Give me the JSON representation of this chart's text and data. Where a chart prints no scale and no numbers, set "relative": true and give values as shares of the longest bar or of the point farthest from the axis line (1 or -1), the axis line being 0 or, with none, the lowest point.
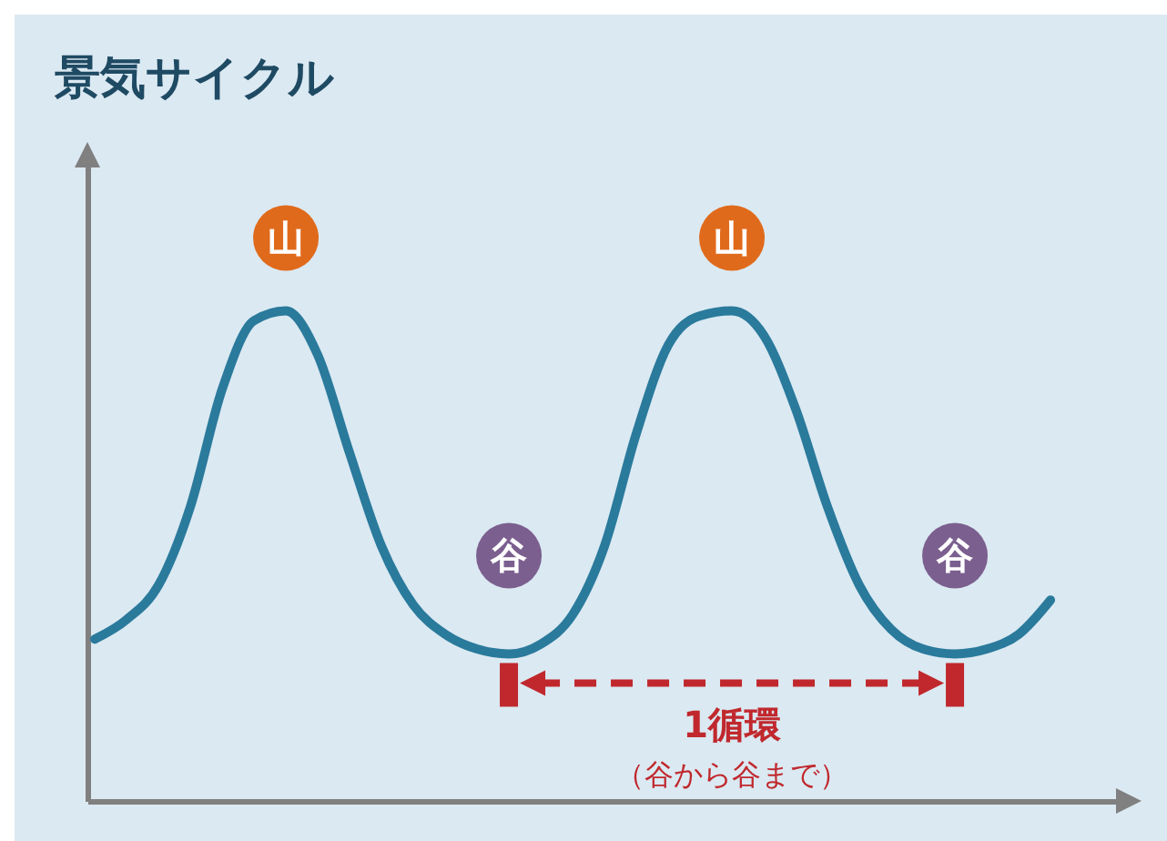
{
  "chart_data": {
    "type": "line",
    "title": "景気サイクル",
    "relative": true,
    "color": "#2a7a9c",
    "categories": [
      null,
      null,
      null,
      null,
      null,
      null,
      null,
      null,
      null,
      null,
      null,
      null,
      null,
      null,
      null,
      null,
      null,
      null,
      null,
      null,
      null,
      null,
      null,
      null,
      null,
      null,
      null,
      null,
      null,
      null,
      null
    ],
    "values": [
      0.33,
      0.37,
      0.44,
      0.6,
      0.84,
      0.98,
      1.0,
      0.91,
      0.71,
      0.52,
      0.4,
      0.34,
      0.31,
      0.3,
      0.32,
      0.38,
      0.52,
      0.75,
      0.93,
      0.99,
      1.0,
      0.95,
      0.8,
      0.6,
      0.44,
      0.35,
      0.31,
      0.3,
      0.31,
      0.34,
      0.41
    ],
    "annotations": [
      "山",
      "山",
      "谷",
      "谷",
      "1循環",
      "（谷から谷まで）"
    ]
  }
}
